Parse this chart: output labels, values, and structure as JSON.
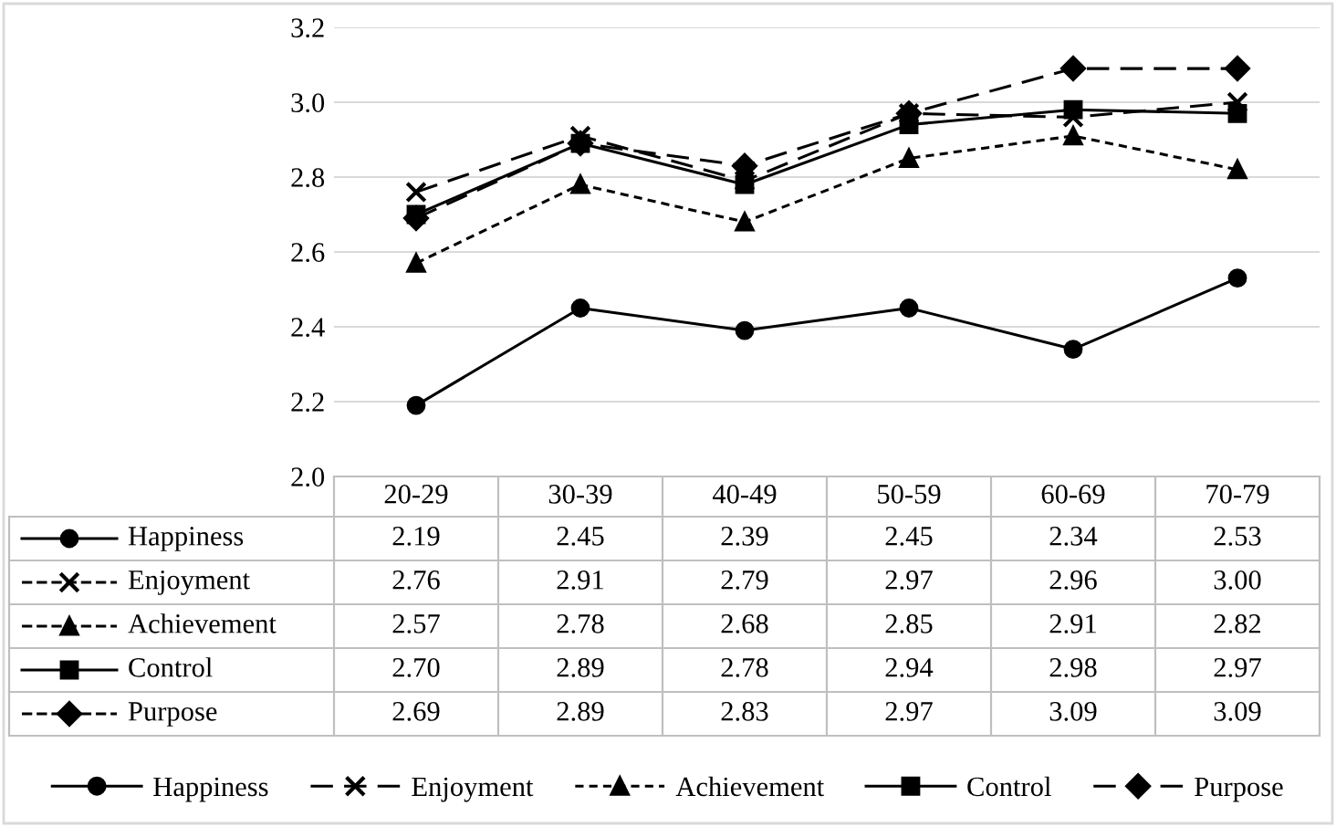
{
  "chart_data": {
    "type": "line",
    "categories": [
      "20-29",
      "30-39",
      "40-49",
      "50-59",
      "60-69",
      "70-79"
    ],
    "ylim": [
      2.0,
      3.2
    ],
    "yticks": [
      {
        "value": 2.0,
        "label": "2.0"
      },
      {
        "value": 2.2,
        "label": "2.2"
      },
      {
        "value": 2.4,
        "label": "2.4"
      },
      {
        "value": 2.6,
        "label": "2.6"
      },
      {
        "value": 2.8,
        "label": "2.8"
      },
      {
        "value": 3.0,
        "label": "3.0"
      },
      {
        "value": 3.2,
        "label": "3.2"
      }
    ],
    "grid": "y",
    "legend": "bottom",
    "series": [
      {
        "name": "Happiness",
        "color": "#000000",
        "marker": "circle",
        "line_style": "solid",
        "values": [
          2.19,
          2.45,
          2.39,
          2.45,
          2.34,
          2.53
        ],
        "value_labels": [
          "2.19",
          "2.45",
          "2.39",
          "2.45",
          "2.34",
          "2.53"
        ]
      },
      {
        "name": "Enjoyment",
        "color": "#000000",
        "marker": "cross",
        "line_style": "dashed",
        "values": [
          2.76,
          2.91,
          2.79,
          2.97,
          2.96,
          3.0
        ],
        "value_labels": [
          "2.76",
          "2.91",
          "2.79",
          "2.97",
          "2.96",
          "3.00"
        ]
      },
      {
        "name": "Achievement",
        "color": "#000000",
        "marker": "triangle",
        "line_style": "dotted",
        "values": [
          2.57,
          2.78,
          2.68,
          2.85,
          2.91,
          2.82
        ],
        "value_labels": [
          "2.57",
          "2.78",
          "2.68",
          "2.85",
          "2.91",
          "2.82"
        ]
      },
      {
        "name": "Control",
        "color": "#000000",
        "marker": "square",
        "line_style": "solid",
        "values": [
          2.7,
          2.89,
          2.78,
          2.94,
          2.98,
          2.97
        ],
        "value_labels": [
          "2.70",
          "2.89",
          "2.78",
          "2.94",
          "2.98",
          "2.97"
        ]
      },
      {
        "name": "Purpose",
        "color": "#000000",
        "marker": "diamond",
        "line_style": "dashed",
        "values": [
          2.69,
          2.89,
          2.83,
          2.97,
          3.09,
          3.09
        ],
        "value_labels": [
          "2.69",
          "2.89",
          "2.83",
          "2.97",
          "3.09",
          "3.09"
        ]
      }
    ]
  }
}
